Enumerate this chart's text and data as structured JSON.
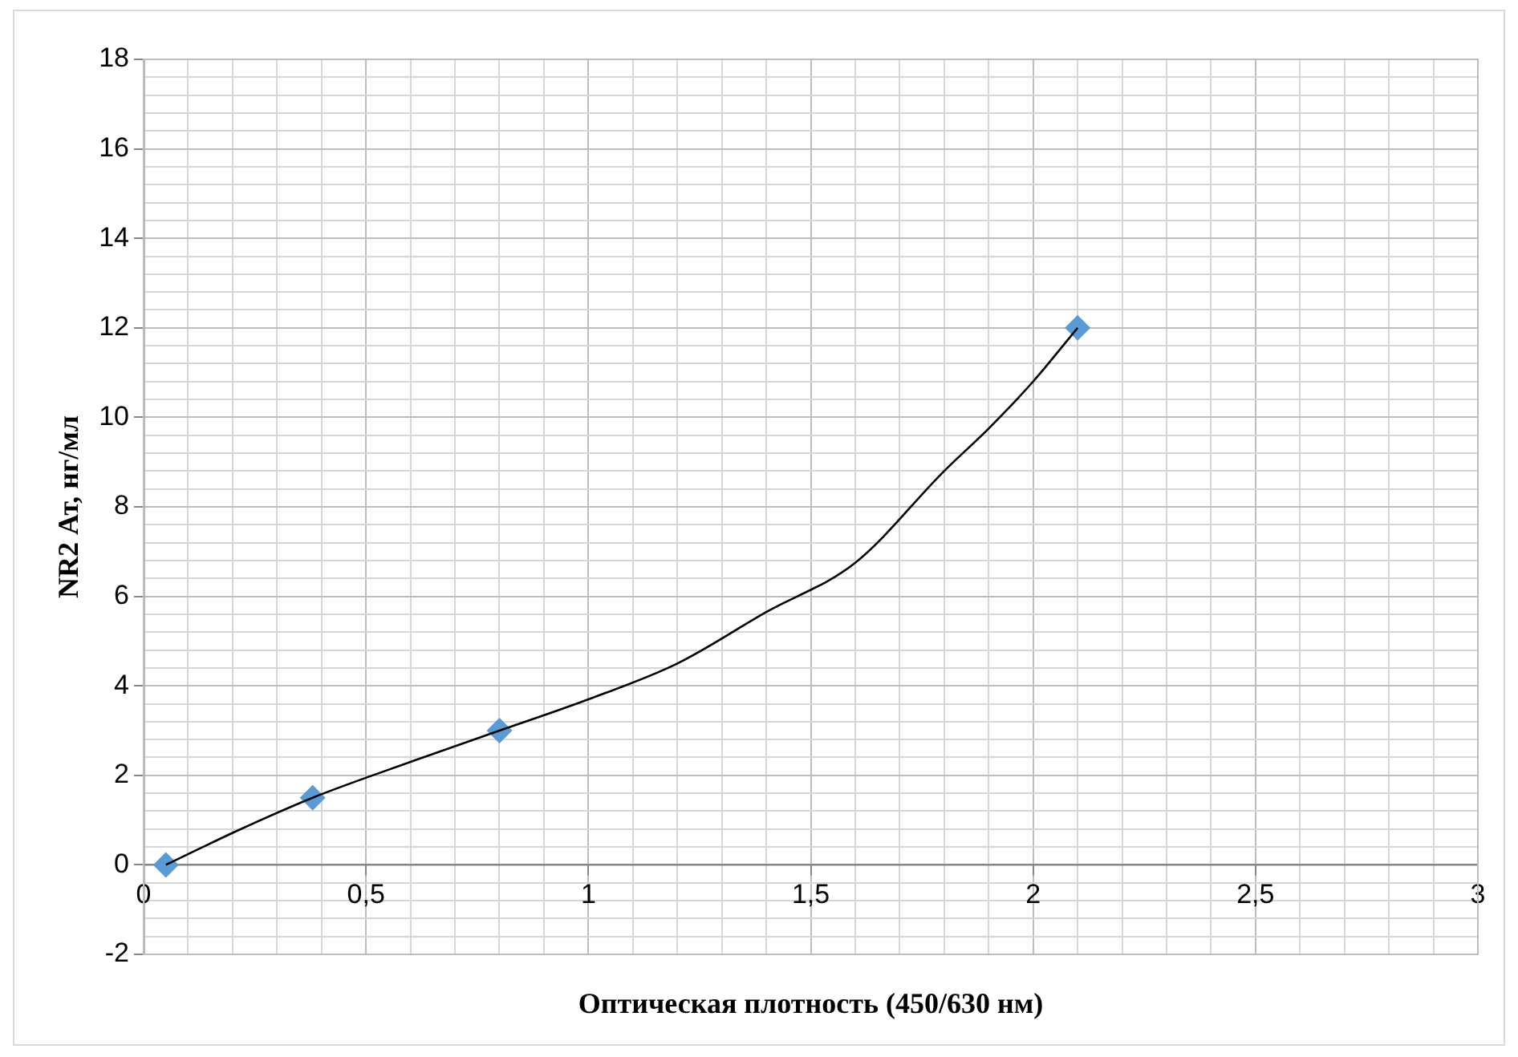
{
  "chart_data": {
    "type": "scatter",
    "xlabel": "Оптическая плотность (450/630 нм)",
    "ylabel": "NR2 Ат, нг/мл",
    "grid": true,
    "marker": "diamond",
    "xlim": [
      0,
      3
    ],
    "ylim": [
      -2,
      18
    ],
    "xticks": [
      0,
      {
        "value": 0.1,
        "label": null
      },
      {
        "value": 0.2,
        "label": null
      },
      {
        "value": 0.3,
        "label": null
      },
      {
        "value": 0.4,
        "label": null
      },
      {
        "value": 0.5,
        "label": "0,5"
      },
      {
        "value": 0.6,
        "label": null
      },
      {
        "value": 0.7,
        "label": null
      },
      {
        "value": 0.8,
        "label": null
      },
      {
        "value": 0.9,
        "label": null
      },
      1,
      {
        "value": 1.1,
        "label": null
      },
      {
        "value": 1.2,
        "label": null
      },
      {
        "value": 1.3,
        "label": null
      },
      {
        "value": 1.4,
        "label": null
      },
      {
        "value": 1.5,
        "label": "1,5"
      },
      {
        "value": 1.6,
        "label": null
      },
      {
        "value": 1.7,
        "label": null
      },
      {
        "value": 1.8,
        "label": null
      },
      {
        "value": 1.9,
        "label": null
      },
      2,
      {
        "value": 2.1,
        "label": null
      },
      {
        "value": 2.2,
        "label": null
      },
      {
        "value": 2.3,
        "label": null
      },
      {
        "value": 2.4,
        "label": null
      },
      {
        "value": 2.5,
        "label": "2,5"
      },
      {
        "value": 2.6,
        "label": null
      },
      {
        "value": 2.7,
        "label": null
      },
      {
        "value": 2.8,
        "label": null
      },
      {
        "value": 2.9,
        "label": null
      },
      3
    ],
    "yticks": [
      -2,
      {
        "value": -1.6,
        "label": null
      },
      {
        "value": -1.2,
        "label": null
      },
      {
        "value": -0.8,
        "label": null
      },
      {
        "value": -0.4,
        "label": null
      },
      0,
      {
        "value": 0.4,
        "label": null
      },
      {
        "value": 0.8,
        "label": null
      },
      {
        "value": 1.2,
        "label": null
      },
      {
        "value": 1.6,
        "label": null
      },
      2,
      {
        "value": 2.4,
        "label": null
      },
      {
        "value": 2.8,
        "label": null
      },
      {
        "value": 3.2,
        "label": null
      },
      {
        "value": 3.6,
        "label": null
      },
      4,
      {
        "value": 4.4,
        "label": null
      },
      {
        "value": 4.8,
        "label": null
      },
      {
        "value": 5.2,
        "label": null
      },
      {
        "value": 5.6,
        "label": null
      },
      6,
      {
        "value": 6.4,
        "label": null
      },
      {
        "value": 6.8,
        "label": null
      },
      {
        "value": 7.2,
        "label": null
      },
      {
        "value": 7.6,
        "label": null
      },
      8,
      {
        "value": 8.4,
        "label": null
      },
      {
        "value": 8.8,
        "label": null
      },
      {
        "value": 9.2,
        "label": null
      },
      {
        "value": 9.6,
        "label": null
      },
      10,
      {
        "value": 10.4,
        "label": null
      },
      {
        "value": 10.8,
        "label": null
      },
      {
        "value": 11.2,
        "label": null
      },
      {
        "value": 11.6,
        "label": null
      },
      12,
      {
        "value": 12.4,
        "label": null
      },
      {
        "value": 12.8,
        "label": null
      },
      {
        "value": 13.2,
        "label": null
      },
      {
        "value": 13.6,
        "label": null
      },
      14,
      {
        "value": 14.4,
        "label": null
      },
      {
        "value": 14.8,
        "label": null
      },
      {
        "value": 15.2,
        "label": null
      },
      {
        "value": 15.6,
        "label": null
      },
      16,
      {
        "value": 16.4,
        "label": null
      },
      {
        "value": 16.8,
        "label": null
      },
      {
        "value": 17.2,
        "label": null
      },
      {
        "value": 17.6,
        "label": null
      },
      18
    ],
    "series": [
      {
        "color": "#5b9bd5",
        "x": [
          0.05,
          0.38,
          0.8,
          2.1
        ],
        "values": [
          0,
          1.5,
          3,
          12
        ]
      },
      {
        "type": "line",
        "color": "#000000",
        "marker": "none",
        "line_style": "solid",
        "x": [
          0.05,
          0.21,
          0.38,
          0.6,
          0.8,
          1.0,
          1.2,
          1.4,
          1.6,
          1.8,
          1.9,
          2.0,
          2.1
        ],
        "values": [
          0,
          0.76,
          1.5,
          2.3,
          3,
          3.7,
          4.5,
          5.65,
          6.75,
          8.8,
          9.75,
          10.8,
          12
        ]
      }
    ]
  }
}
